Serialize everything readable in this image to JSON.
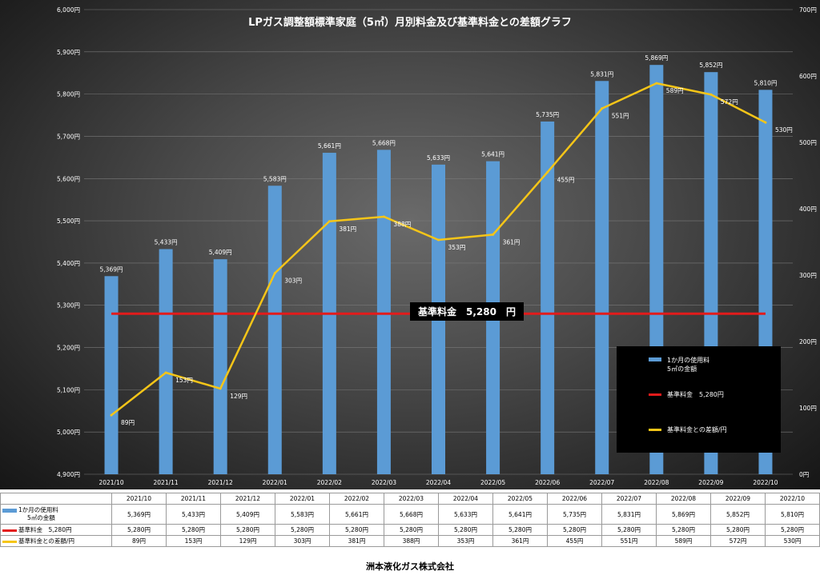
{
  "company": "洲本液化ガス株式会社",
  "base_label": "基準料金　5,280　円",
  "colors": {
    "bar": "#5b9bd5",
    "base": "#e31b1b",
    "diff": "#f5c518"
  },
  "legend": {
    "bar_line1": "1か月の使用料",
    "bar_line2": "5㎥の金額",
    "base": "基準料金　5,280円",
    "diff": "基準料金との差額/円"
  },
  "table": {
    "bar_head_line1": "1か月の使用料",
    "bar_head_line2": "5㎥の金額",
    "base_head": "基準料金　5,280円",
    "diff_head": "基準料金との差額/円"
  },
  "chart_data": {
    "type": "bar",
    "title": "LPガス調整額標準家庭（5㎥）月別料金及び基準料金との差額グラフ",
    "categories": [
      "2021/10",
      "2021/11",
      "2021/12",
      "2022/01",
      "2022/02",
      "2022/03",
      "2022/04",
      "2022/05",
      "2022/06",
      "2022/07",
      "2022/08",
      "2022/09",
      "2022/10"
    ],
    "series": [
      {
        "name": "1か月の使用料 5㎥の金額",
        "type": "bar",
        "axis": "left",
        "values": [
          5369,
          5433,
          5409,
          5583,
          5661,
          5668,
          5633,
          5641,
          5735,
          5831,
          5869,
          5852,
          5810
        ],
        "labels": [
          "5,369円",
          "5,433円",
          "5,409円",
          "5,583円",
          "5,661円",
          "5,668円",
          "5,633円",
          "5,641円",
          "5,735円",
          "5,831円",
          "5,869円",
          "5,852円",
          "5,810円"
        ]
      },
      {
        "name": "基準料金　5,280円",
        "type": "line",
        "axis": "left",
        "values": [
          5280,
          5280,
          5280,
          5280,
          5280,
          5280,
          5280,
          5280,
          5280,
          5280,
          5280,
          5280,
          5280
        ],
        "labels": [
          "5,280円",
          "5,280円",
          "5,280円",
          "5,280円",
          "5,280円",
          "5,280円",
          "5,280円",
          "5,280円",
          "5,280円",
          "5,280円",
          "5,280円",
          "5,280円",
          "5,280円"
        ]
      },
      {
        "name": "基準料金との差額/円",
        "type": "line",
        "axis": "right",
        "values": [
          89,
          153,
          129,
          303,
          381,
          388,
          353,
          361,
          455,
          551,
          589,
          572,
          530
        ],
        "labels": [
          "89円",
          "153円",
          "129円",
          "303円",
          "381円",
          "388円",
          "353円",
          "361円",
          "455円",
          "551円",
          "589円",
          "572円",
          "530円"
        ]
      }
    ],
    "y_left": {
      "min": 4900,
      "max": 6000,
      "step": 100,
      "ticks": [
        "4,900円",
        "5,000円",
        "5,100円",
        "5,200円",
        "5,300円",
        "5,400円",
        "5,500円",
        "5,600円",
        "5,700円",
        "5,800円",
        "5,900円",
        "6,000円"
      ]
    },
    "y_right": {
      "min": 0,
      "max": 700,
      "step": 100,
      "ticks": [
        "0円",
        "100円",
        "200円",
        "300円",
        "400円",
        "500円",
        "600円",
        "700円"
      ]
    },
    "grid": true,
    "legend_position": "bottom-right"
  }
}
